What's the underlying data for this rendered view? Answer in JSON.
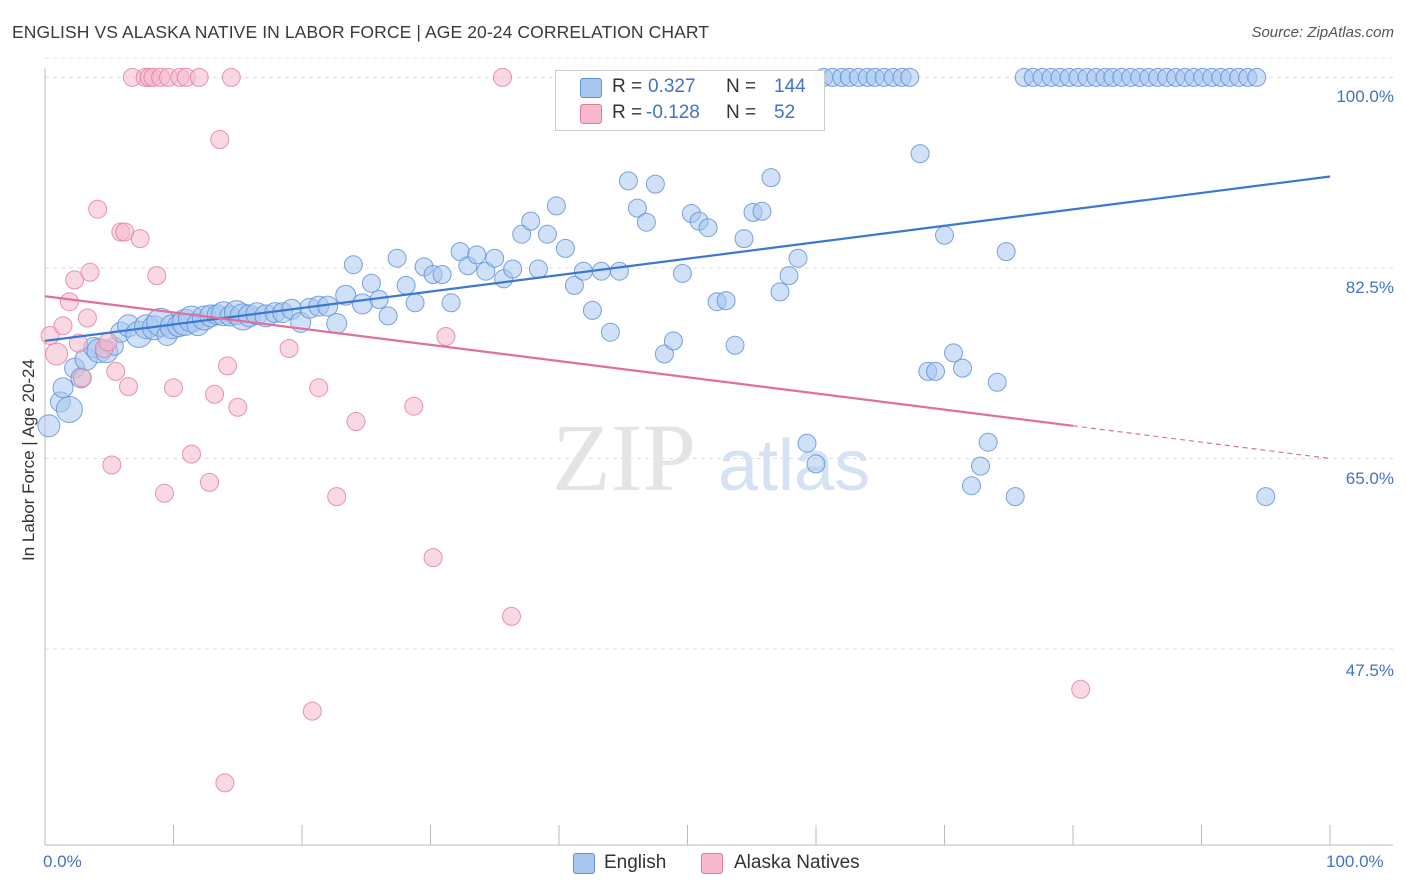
{
  "title": "ENGLISH VS ALASKA NATIVE IN LABOR FORCE | AGE 20-24 CORRELATION CHART",
  "source": "Source: ZipAtlas.com",
  "watermark": {
    "zip": "ZIP",
    "atlas": "atlas"
  },
  "legend": {
    "rows": [
      {
        "r_label": "R =",
        "r_value": "0.327",
        "n_label": "N =",
        "n_value": "144",
        "color": "#a8c6f0"
      },
      {
        "r_label": "R =",
        "r_value": "-0.128",
        "n_label": "N =",
        "n_value": "52",
        "color": "#f6b8ca"
      }
    ]
  },
  "bottom_legend": [
    {
      "label": "English",
      "color": "#a8c6f0"
    },
    {
      "label": "Alaska Natives",
      "color": "#f6b8ca"
    }
  ],
  "chart_data": {
    "type": "scatter",
    "title": "ENGLISH VS ALASKA NATIVE IN LABOR FORCE | AGE 20-24 CORRELATION CHART",
    "xlabel": "",
    "ylabel": "In Labor Force | Age 20-24",
    "xlim": [
      0,
      100
    ],
    "ylim": [
      29.5,
      101.6
    ],
    "y_ticks": [
      100.0,
      82.5,
      65.0,
      47.5
    ],
    "y_tick_labels": [
      "100.0%",
      "82.5%",
      "65.0%",
      "47.5%"
    ],
    "x_tick_labels": [
      "0.0%",
      "100.0%"
    ],
    "series": [
      {
        "name": "English",
        "color": "#a8c6f0",
        "stroke": "#5b8fd6",
        "trend": {
          "x": [
            0,
            100
          ],
          "y": [
            75.8,
            90.9
          ],
          "color": "#3b78d0"
        },
        "points": [
          [
            0.3,
            68.0,
            11
          ],
          [
            1.2,
            70.2,
            10
          ],
          [
            1.9,
            69.5,
            13
          ],
          [
            1.4,
            71.5,
            10
          ],
          [
            2.3,
            73.3,
            10
          ],
          [
            2.8,
            72.4,
            10
          ],
          [
            3.2,
            74.1,
            11
          ],
          [
            3.8,
            75.2,
            10
          ],
          [
            4.2,
            74.9,
            12
          ],
          [
            4.8,
            74.8,
            11
          ],
          [
            5.4,
            75.3,
            9
          ],
          [
            5.9,
            76.6,
            10
          ],
          [
            6.5,
            77.2,
            11
          ],
          [
            7.3,
            76.4,
            13
          ],
          [
            7.9,
            77.1,
            12
          ],
          [
            8.5,
            77.0,
            12
          ],
          [
            9.0,
            77.5,
            14
          ],
          [
            9.5,
            76.3,
            10
          ],
          [
            9.9,
            77.1,
            12
          ],
          [
            10.4,
            77.2,
            11
          ],
          [
            10.9,
            77.5,
            13
          ],
          [
            11.4,
            77.8,
            13
          ],
          [
            11.9,
            77.3,
            11
          ],
          [
            12.4,
            77.9,
            12
          ],
          [
            12.9,
            78.1,
            11
          ],
          [
            13.4,
            78.2,
            10
          ],
          [
            13.9,
            78.3,
            12
          ],
          [
            14.4,
            78.1,
            10
          ],
          [
            14.9,
            78.4,
            12
          ],
          [
            15.4,
            78.0,
            13
          ],
          [
            15.9,
            78.1,
            11
          ],
          [
            16.5,
            78.3,
            11
          ],
          [
            17.2,
            78.1,
            11
          ],
          [
            17.9,
            78.4,
            10
          ],
          [
            18.5,
            78.4,
            10
          ],
          [
            19.2,
            78.7,
            10
          ],
          [
            19.9,
            77.5,
            10
          ],
          [
            20.6,
            78.8,
            10
          ],
          [
            21.3,
            79.0,
            10
          ],
          [
            22.0,
            79.0,
            10
          ],
          [
            22.7,
            77.4,
            10
          ],
          [
            23.4,
            80.0,
            10
          ],
          [
            24.0,
            82.8,
            9
          ],
          [
            24.7,
            79.2,
            10
          ],
          [
            25.4,
            81.1,
            9
          ],
          [
            26.0,
            79.6,
            9
          ],
          [
            26.7,
            78.1,
            9
          ],
          [
            27.4,
            83.4,
            9
          ],
          [
            28.1,
            80.9,
            9
          ],
          [
            28.8,
            79.3,
            9
          ],
          [
            29.5,
            82.6,
            9
          ],
          [
            30.2,
            81.9,
            9
          ],
          [
            30.9,
            81.9,
            9
          ],
          [
            31.6,
            79.3,
            9
          ],
          [
            32.3,
            84.0,
            9
          ],
          [
            32.9,
            82.7,
            9
          ],
          [
            33.6,
            83.7,
            9
          ],
          [
            34.3,
            82.2,
            9
          ],
          [
            35.0,
            83.4,
            9
          ],
          [
            35.7,
            81.5,
            9
          ],
          [
            36.4,
            82.4,
            9
          ],
          [
            37.1,
            85.6,
            9
          ],
          [
            37.8,
            86.8,
            9
          ],
          [
            38.4,
            82.4,
            9
          ],
          [
            39.1,
            85.6,
            9
          ],
          [
            39.8,
            88.2,
            9
          ],
          [
            40.5,
            84.3,
            9
          ],
          [
            41.2,
            80.9,
            9
          ],
          [
            41.9,
            82.2,
            9
          ],
          [
            42.6,
            78.6,
            9
          ],
          [
            43.3,
            82.2,
            9
          ],
          [
            44.0,
            76.6,
            9
          ],
          [
            44.7,
            82.2,
            9
          ],
          [
            45.4,
            90.5,
            9
          ],
          [
            46.1,
            88.0,
            9
          ],
          [
            46.8,
            86.7,
            9
          ],
          [
            47.5,
            90.2,
            9
          ],
          [
            48.2,
            74.6,
            9
          ],
          [
            48.9,
            75.8,
            9
          ],
          [
            49.6,
            82.0,
            9
          ],
          [
            50.3,
            87.5,
            9
          ],
          [
            50.9,
            86.8,
            9
          ],
          [
            51.6,
            86.2,
            9
          ],
          [
            52.3,
            79.4,
            9
          ],
          [
            53.0,
            79.5,
            9
          ],
          [
            53.7,
            75.4,
            9
          ],
          [
            54.4,
            85.2,
            9
          ],
          [
            55.1,
            87.6,
            9
          ],
          [
            55.8,
            87.7,
            9
          ],
          [
            56.5,
            90.8,
            9
          ],
          [
            57.2,
            80.3,
            9
          ],
          [
            57.9,
            81.8,
            9
          ],
          [
            58.6,
            83.4,
            9
          ],
          [
            59.3,
            66.4,
            9
          ],
          [
            60.0,
            64.5,
            9
          ],
          [
            60.6,
            100.0,
            9
          ],
          [
            61.3,
            100.0,
            9
          ],
          [
            62.0,
            100.0,
            9
          ],
          [
            62.6,
            100.0,
            9
          ],
          [
            63.3,
            100.0,
            9
          ],
          [
            64.0,
            100.0,
            9
          ],
          [
            64.6,
            100.0,
            9
          ],
          [
            65.3,
            100.0,
            9
          ],
          [
            66.0,
            100.0,
            9
          ],
          [
            66.7,
            100.0,
            9
          ],
          [
            67.3,
            100.0,
            9
          ],
          [
            68.1,
            93.0,
            9
          ],
          [
            68.7,
            73.0,
            9
          ],
          [
            69.3,
            73.0,
            9
          ],
          [
            70.0,
            85.5,
            9
          ],
          [
            70.7,
            74.7,
            9
          ],
          [
            71.4,
            73.3,
            9
          ],
          [
            72.1,
            62.5,
            9
          ],
          [
            72.8,
            64.3,
            9
          ],
          [
            73.4,
            66.5,
            9
          ],
          [
            74.1,
            72.0,
            9
          ],
          [
            74.8,
            84.0,
            9
          ],
          [
            75.5,
            61.5,
            9
          ],
          [
            76.2,
            100.0,
            9
          ],
          [
            76.9,
            100.0,
            9
          ],
          [
            77.6,
            100.0,
            9
          ],
          [
            78.3,
            100.0,
            9
          ],
          [
            79.0,
            100.0,
            9
          ],
          [
            79.7,
            100.0,
            9
          ],
          [
            80.4,
            100.0,
            9
          ],
          [
            81.1,
            100.0,
            9
          ],
          [
            81.8,
            100.0,
            9
          ],
          [
            82.5,
            100.0,
            9
          ],
          [
            83.1,
            100.0,
            9
          ],
          [
            83.8,
            100.0,
            9
          ],
          [
            84.5,
            100.0,
            9
          ],
          [
            85.2,
            100.0,
            9
          ],
          [
            85.9,
            100.0,
            9
          ],
          [
            86.6,
            100.0,
            9
          ],
          [
            87.3,
            100.0,
            9
          ],
          [
            88.0,
            100.0,
            9
          ],
          [
            88.7,
            100.0,
            9
          ],
          [
            89.4,
            100.0,
            9
          ],
          [
            90.1,
            100.0,
            9
          ],
          [
            90.8,
            100.0,
            9
          ],
          [
            91.5,
            100.0,
            9
          ],
          [
            92.2,
            100.0,
            9
          ],
          [
            92.9,
            100.0,
            9
          ],
          [
            93.6,
            100.0,
            9
          ],
          [
            94.3,
            100.0,
            9
          ],
          [
            95.0,
            61.5,
            9
          ]
        ]
      },
      {
        "name": "Alaska Natives",
        "color": "#f6b8ca",
        "stroke": "#e07d9c",
        "trend": {
          "x": [
            0,
            80
          ],
          "y": [
            79.9,
            68.0
          ],
          "dash_to": [
            100,
            65.0
          ],
          "color": "#e0709a"
        },
        "points": [
          [
            0.4,
            76.3,
            9
          ],
          [
            0.9,
            74.6,
            11
          ],
          [
            1.4,
            77.2,
            9
          ],
          [
            1.9,
            79.4,
            9
          ],
          [
            2.3,
            81.4,
            9
          ],
          [
            2.6,
            75.6,
            9
          ],
          [
            2.9,
            72.4,
            9
          ],
          [
            3.3,
            77.9,
            9
          ],
          [
            3.5,
            82.1,
            9
          ],
          [
            4.1,
            87.9,
            9
          ],
          [
            4.6,
            75.1,
            9
          ],
          [
            4.9,
            75.7,
            9
          ],
          [
            5.2,
            64.4,
            9
          ],
          [
            5.5,
            73.0,
            9
          ],
          [
            5.9,
            85.8,
            9
          ],
          [
            6.2,
            85.8,
            9
          ],
          [
            6.5,
            71.6,
            9
          ],
          [
            6.8,
            100.0,
            9
          ],
          [
            7.4,
            85.2,
            9
          ],
          [
            7.8,
            100.0,
            9
          ],
          [
            8.1,
            100.0,
            9
          ],
          [
            8.4,
            100.0,
            9
          ],
          [
            8.7,
            81.8,
            9
          ],
          [
            9.0,
            100.0,
            9
          ],
          [
            9.3,
            61.8,
            9
          ],
          [
            9.6,
            100.0,
            9
          ],
          [
            10.0,
            71.5,
            9
          ],
          [
            10.5,
            100.0,
            9
          ],
          [
            11.0,
            100.0,
            9
          ],
          [
            11.4,
            65.4,
            9
          ],
          [
            12.0,
            100.0,
            9
          ],
          [
            12.8,
            62.8,
            9
          ],
          [
            13.2,
            70.9,
            9
          ],
          [
            13.6,
            94.3,
            9
          ],
          [
            14.2,
            73.5,
            9
          ],
          [
            14.5,
            100.0,
            9
          ],
          [
            15.0,
            69.7,
            9
          ],
          [
            19.0,
            75.1,
            9
          ],
          [
            20.8,
            41.8,
            9
          ],
          [
            21.3,
            71.5,
            9
          ],
          [
            22.7,
            61.5,
            9
          ],
          [
            24.2,
            68.4,
            9
          ],
          [
            28.7,
            69.8,
            9
          ],
          [
            30.2,
            55.9,
            9
          ],
          [
            31.2,
            76.2,
            9
          ],
          [
            35.6,
            100.0,
            9
          ],
          [
            36.3,
            50.5,
            9
          ],
          [
            14.0,
            35.2,
            9
          ],
          [
            80.6,
            43.8,
            9
          ]
        ]
      }
    ]
  }
}
